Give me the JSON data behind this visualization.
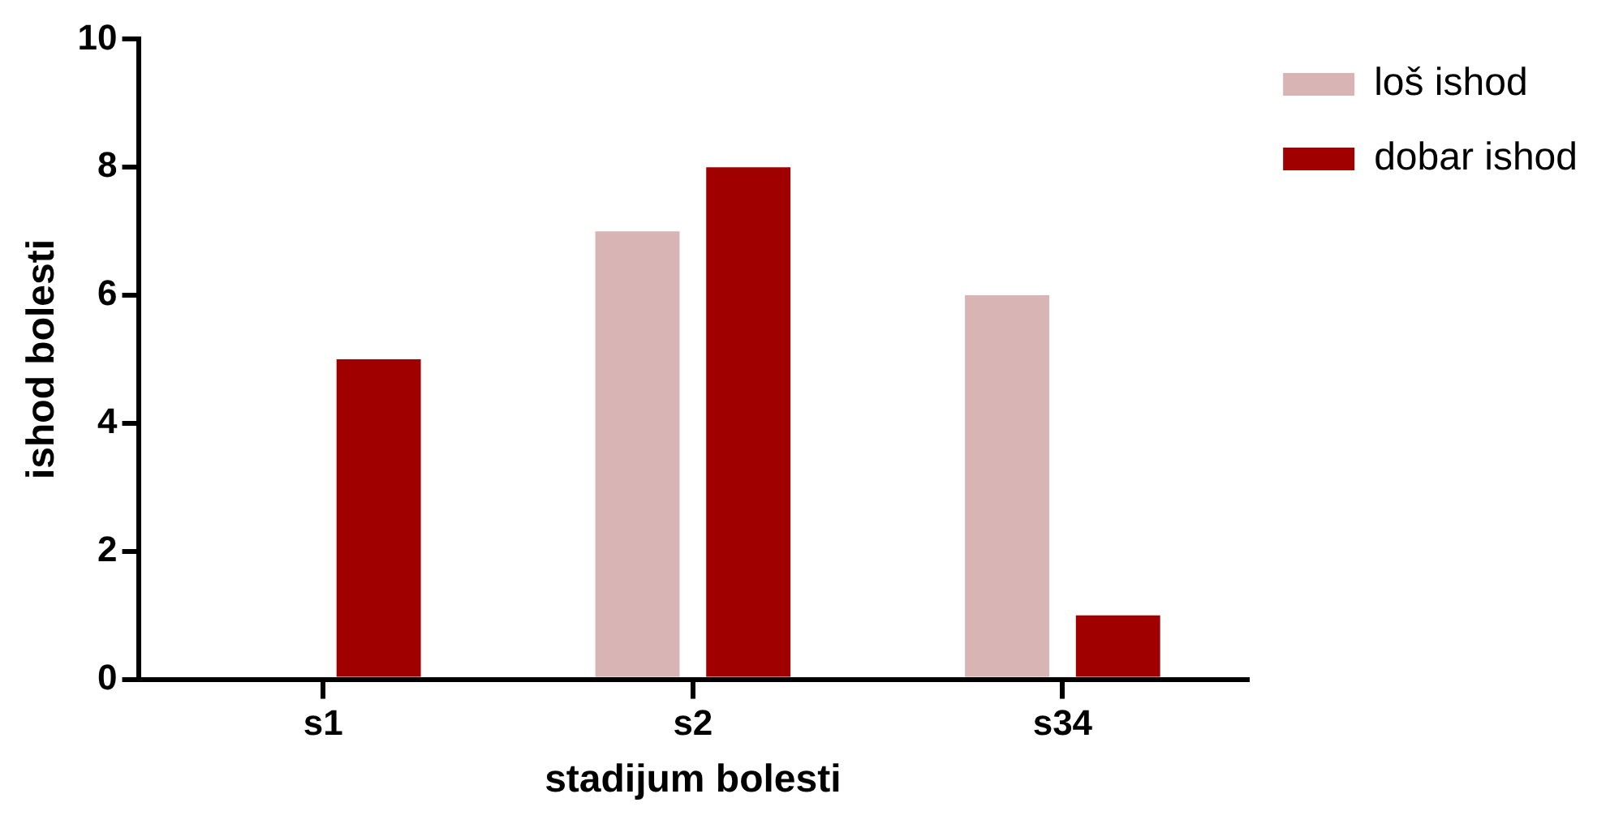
{
  "chart_data": {
    "type": "bar",
    "xlabel": "stadijum bolesti",
    "ylabel": "ishod bolesti",
    "categories": [
      "s1",
      "s2",
      "s34"
    ],
    "series": [
      {
        "name": "loš ishod",
        "color": "#d8b4b4",
        "values": [
          0,
          7,
          6
        ]
      },
      {
        "name": "dobar ishod",
        "color": "#a00000",
        "values": [
          5,
          8,
          1
        ]
      }
    ],
    "ylim": [
      0,
      10
    ],
    "yticks": [
      0,
      2,
      4,
      6,
      8,
      10
    ],
    "grid": false,
    "legend": "top right"
  }
}
